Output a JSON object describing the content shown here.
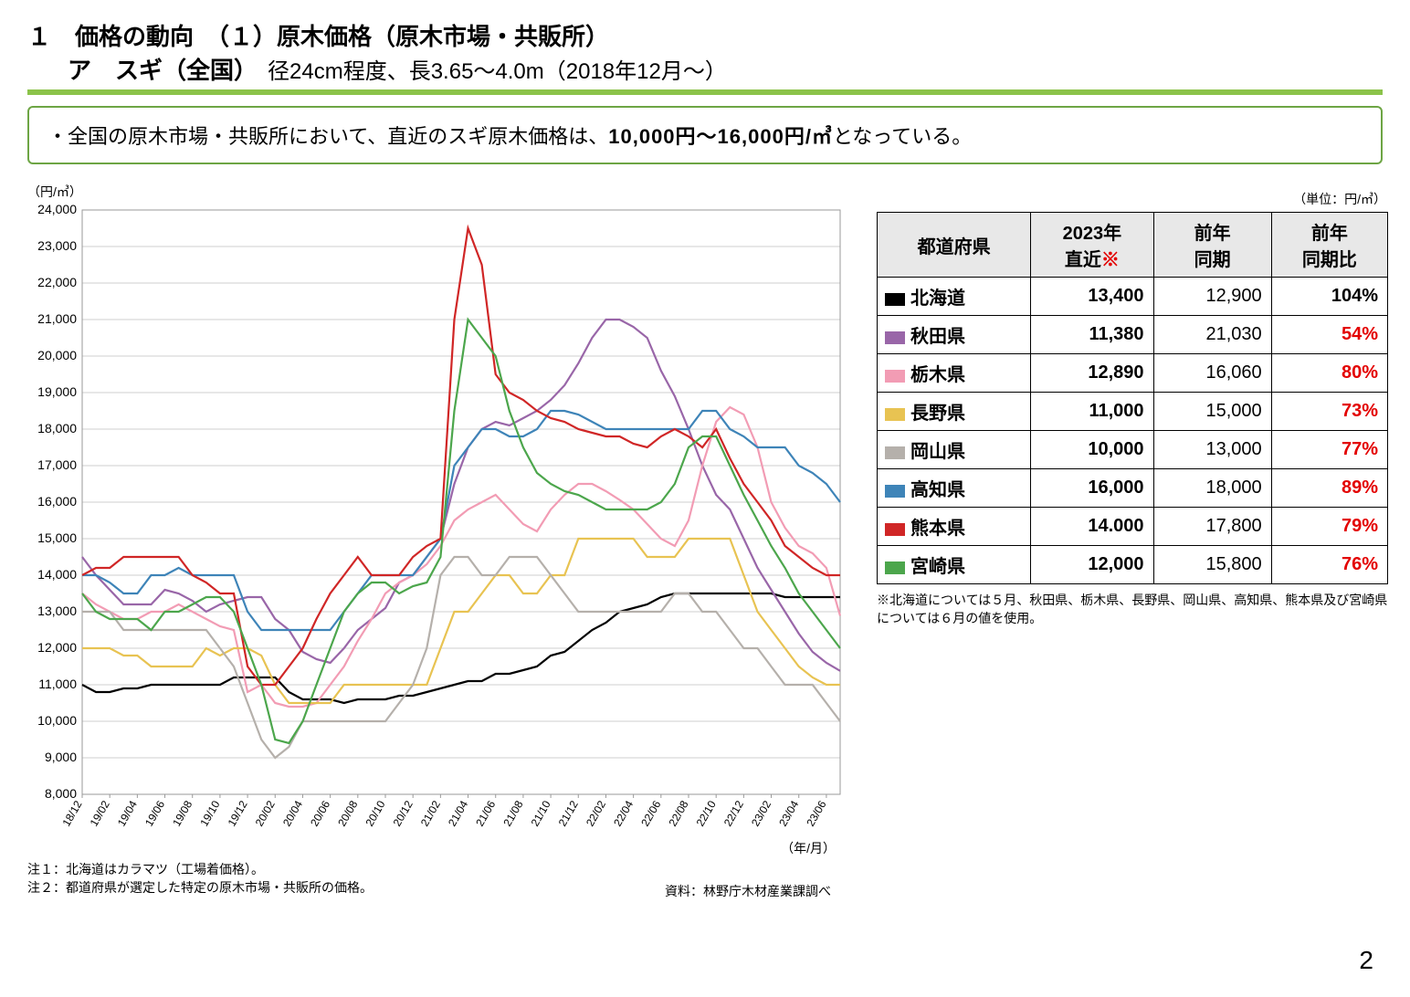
{
  "title": {
    "line1": "１　価格の動向　（１）原木価格（原木市場・共販所）",
    "line2_bold": "ア　スギ（全国）",
    "line2_sub": "　径24cm程度、長3.65～4.0m（2018年12月～）"
  },
  "summary": {
    "prefix": "・全国の原木市場・共販所において、直近のスギ原木価格は、",
    "bold": "10,000円～16,000円/㎥",
    "suffix": "となっている。"
  },
  "chart": {
    "y_axis_label": "（円/㎥）",
    "x_axis_label": "（年/月）",
    "ylim": [
      8000,
      24000
    ],
    "ytick_step": 1000,
    "plot_bg": "#ffffff",
    "grid_color": "#cfcfcf",
    "border_color": "#9a9a9a",
    "x_labels": [
      "18/12",
      "19/02",
      "19/04",
      "19/06",
      "19/08",
      "19/10",
      "19/12",
      "20/02",
      "20/04",
      "20/06",
      "20/08",
      "20/10",
      "20/12",
      "21/02",
      "21/04",
      "21/06",
      "21/08",
      "21/10",
      "21/12",
      "22/02",
      "22/04",
      "22/06",
      "22/08",
      "22/10",
      "22/12",
      "23/02",
      "23/04",
      "23/06"
    ],
    "n_points": 56,
    "series": [
      {
        "name_jp": "北海道",
        "color": "#000000",
        "data": [
          11000,
          10800,
          10800,
          10900,
          10900,
          11000,
          11000,
          11000,
          11000,
          11000,
          11000,
          11200,
          11200,
          11200,
          11200,
          10800,
          10600,
          10600,
          10600,
          10500,
          10600,
          10600,
          10600,
          10700,
          10700,
          10800,
          10900,
          11000,
          11100,
          11100,
          11300,
          11300,
          11400,
          11500,
          11800,
          11900,
          12200,
          12500,
          12700,
          13000,
          13100,
          13200,
          13400,
          13500,
          13500,
          13500,
          13500,
          13500,
          13500,
          13500,
          13500,
          13400,
          13400,
          13400,
          13400,
          13400
        ]
      },
      {
        "name_jp": "秋田県",
        "color": "#9966a8",
        "data": [
          14500,
          14000,
          13600,
          13200,
          13200,
          13200,
          13600,
          13500,
          13300,
          13000,
          13200,
          13300,
          13400,
          13400,
          12800,
          12500,
          11900,
          11700,
          11600,
          12000,
          12500,
          12800,
          13100,
          13800,
          14000,
          14500,
          15000,
          16500,
          17500,
          18000,
          18200,
          18100,
          18300,
          18500,
          18800,
          19200,
          19800,
          20500,
          21000,
          21000,
          20800,
          20500,
          19600,
          18900,
          18000,
          17000,
          16200,
          15800,
          15000,
          14200,
          13600,
          13000,
          12400,
          11900,
          11600,
          11380
        ]
      },
      {
        "name_jp": "栃木県",
        "color": "#f29cb4",
        "data": [
          13500,
          13200,
          13000,
          12800,
          12800,
          13000,
          13000,
          13200,
          13000,
          12800,
          12600,
          12500,
          10800,
          11000,
          10500,
          10400,
          10400,
          10500,
          11000,
          11500,
          12200,
          12800,
          13500,
          13800,
          14000,
          14300,
          14800,
          15500,
          15800,
          16000,
          16200,
          15800,
          15400,
          15200,
          15800,
          16200,
          16500,
          16500,
          16300,
          16060,
          15800,
          15400,
          15000,
          14800,
          15500,
          17000,
          18200,
          18600,
          18400,
          17500,
          16000,
          15300,
          14800,
          14600,
          14200,
          12890
        ]
      },
      {
        "name_jp": "長野県",
        "color": "#e8c352",
        "data": [
          12000,
          12000,
          12000,
          11800,
          11800,
          11500,
          11500,
          11500,
          11500,
          12000,
          11800,
          12000,
          12000,
          11800,
          11000,
          10500,
          10500,
          10500,
          10500,
          11000,
          11000,
          11000,
          11000,
          11000,
          11000,
          11000,
          12000,
          13000,
          13000,
          13500,
          14000,
          14000,
          13500,
          13500,
          14000,
          14000,
          15000,
          15000,
          15000,
          15000,
          15000,
          14500,
          14500,
          14500,
          15000,
          15000,
          15000,
          15000,
          14000,
          13000,
          12500,
          12000,
          11500,
          11200,
          11000,
          11000
        ]
      },
      {
        "name_jp": "岡山県",
        "color": "#b5b0ab",
        "data": [
          13000,
          13000,
          13000,
          12500,
          12500,
          12500,
          12500,
          12500,
          12500,
          12500,
          12000,
          11500,
          10500,
          9500,
          9000,
          9300,
          10000,
          10000,
          10000,
          10000,
          10000,
          10000,
          10000,
          10500,
          11000,
          12000,
          14000,
          14500,
          14500,
          14000,
          14000,
          14500,
          14500,
          14500,
          14000,
          13500,
          13000,
          13000,
          13000,
          13000,
          13000,
          13000,
          13000,
          13500,
          13500,
          13000,
          13000,
          12500,
          12000,
          12000,
          11500,
          11000,
          11000,
          11000,
          10500,
          10000
        ]
      },
      {
        "name_jp": "高知県",
        "color": "#3e84b8",
        "data": [
          14000,
          14000,
          13800,
          13500,
          13500,
          14000,
          14000,
          14200,
          14000,
          14000,
          14000,
          14000,
          13000,
          12500,
          12500,
          12500,
          12500,
          12500,
          12500,
          13000,
          13500,
          14000,
          14000,
          14000,
          14000,
          14500,
          15000,
          17000,
          17500,
          18000,
          18000,
          17800,
          17800,
          18000,
          18500,
          18500,
          18400,
          18200,
          18000,
          18000,
          18000,
          18000,
          18000,
          18000,
          18000,
          18500,
          18500,
          18000,
          17800,
          17500,
          17500,
          17500,
          17000,
          16800,
          16500,
          16000
        ]
      },
      {
        "name_jp": "熊本県",
        "color": "#d02626",
        "data": [
          14000,
          14200,
          14200,
          14500,
          14500,
          14500,
          14500,
          14500,
          14000,
          13800,
          13500,
          13500,
          11500,
          11000,
          11000,
          11500,
          12000,
          12800,
          13500,
          14000,
          14500,
          14000,
          14000,
          14000,
          14500,
          14800,
          15000,
          21000,
          23500,
          22500,
          19500,
          19000,
          18800,
          18500,
          18300,
          18200,
          18000,
          17900,
          17800,
          17800,
          17600,
          17500,
          17800,
          18000,
          17800,
          17500,
          18000,
          17200,
          16500,
          16000,
          15500,
          14800,
          14500,
          14200,
          14000,
          14000
        ]
      },
      {
        "name_jp": "宮崎県",
        "color": "#4ca64c",
        "data": [
          13500,
          13000,
          12800,
          12800,
          12800,
          12500,
          13000,
          13000,
          13200,
          13400,
          13400,
          13000,
          12000,
          11000,
          9500,
          9400,
          10000,
          11000,
          12000,
          13000,
          13500,
          13800,
          13800,
          13500,
          13700,
          13800,
          14500,
          18500,
          21000,
          20500,
          20000,
          18500,
          17500,
          16800,
          16500,
          16300,
          16200,
          16000,
          15800,
          15800,
          15800,
          15800,
          16000,
          16500,
          17500,
          17800,
          17800,
          17000,
          16200,
          15500,
          14800,
          14200,
          13500,
          13000,
          12500,
          12000
        ]
      }
    ]
  },
  "table": {
    "unit_label": "（単位：円/㎥）",
    "headers": {
      "pref": "都道府県",
      "recent_pre": "2023年",
      "recent_post": "直近",
      "prev": "前年\n同期",
      "ratio": "前年\n同期比"
    },
    "rows": [
      {
        "pref": "北海道",
        "color": "#000000",
        "recent": "13,400",
        "prev": "12,900",
        "ratio": "104%",
        "ratio_color": "#000000"
      },
      {
        "pref": "秋田県",
        "color": "#9966a8",
        "recent": "11,380",
        "prev": "21,030",
        "ratio": "54%",
        "ratio_color": "#e30000"
      },
      {
        "pref": "栃木県",
        "color": "#f29cb4",
        "recent": "12,890",
        "prev": "16,060",
        "ratio": "80%",
        "ratio_color": "#e30000"
      },
      {
        "pref": "長野県",
        "color": "#e8c352",
        "recent": "11,000",
        "prev": "15,000",
        "ratio": "73%",
        "ratio_color": "#e30000"
      },
      {
        "pref": "岡山県",
        "color": "#b5b0ab",
        "recent": "10,000",
        "prev": "13,000",
        "ratio": "77%",
        "ratio_color": "#e30000"
      },
      {
        "pref": "高知県",
        "color": "#3e84b8",
        "recent": "16,000",
        "prev": "18,000",
        "ratio": "89%",
        "ratio_color": "#e30000"
      },
      {
        "pref": "熊本県",
        "color": "#d02626",
        "recent": "14.000",
        "prev": "17,800",
        "ratio": "79%",
        "ratio_color": "#e30000"
      },
      {
        "pref": "宮崎県",
        "color": "#4ca64c",
        "recent": "12,000",
        "prev": "15,800",
        "ratio": "76%",
        "ratio_color": "#e30000"
      }
    ],
    "note": "※北海道については５月、秋田県、栃木県、長野県、岡山県、高知県、熊本県及び宮崎県については６月の値を使用。"
  },
  "footnotes": {
    "n1": "注１：北海道はカラマツ（工場着価格）。",
    "n2": "注２：都道府県が選定した特定の原木市場・共販所の価格。",
    "source": "資料：林野庁木材産業課調べ"
  },
  "page_number": "2"
}
